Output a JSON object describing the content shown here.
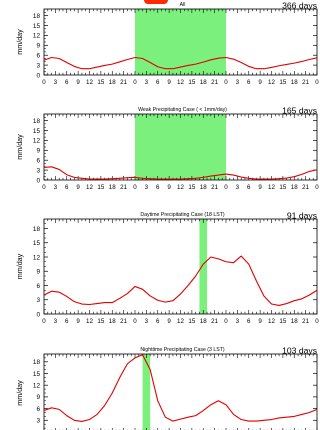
{
  "colors": {
    "series": "#e00000",
    "highlight": "#7cf07c",
    "axis": "#000000",
    "top_mark": "#ff2a00"
  },
  "chart_data": [
    {
      "type": "line",
      "title": "All",
      "days_label": "366 days",
      "ylabel": "mm/day",
      "ylim": [
        0,
        20
      ],
      "yticks": [
        "0",
        "3",
        "6",
        "9",
        "12",
        "15",
        "18"
      ],
      "xticks": [
        "0",
        "3",
        "6",
        "9",
        "12",
        "15",
        "18",
        "21",
        "0",
        "3",
        "6",
        "9",
        "12",
        "15",
        "18",
        "21",
        "0",
        "3",
        "6",
        "9",
        "12",
        "15",
        "18",
        "21",
        "0"
      ],
      "xlim": [
        0,
        72
      ],
      "highlight": {
        "x_start": 24,
        "x_end": 48
      },
      "series": [
        {
          "x": [
            0,
            2,
            4,
            6,
            8,
            10,
            12,
            14,
            16,
            18,
            20,
            22,
            24,
            26,
            28,
            30,
            32,
            34,
            36,
            38,
            40,
            42,
            44,
            46,
            48,
            50,
            52,
            54,
            56,
            58,
            60,
            62,
            64,
            66,
            68,
            70,
            72
          ],
          "y": [
            4.5,
            5.3,
            5.0,
            3.8,
            2.6,
            1.9,
            1.9,
            2.4,
            2.9,
            3.3,
            4.0,
            4.7,
            5.3,
            5.0,
            3.8,
            2.5,
            1.9,
            1.9,
            2.4,
            2.9,
            3.3,
            3.9,
            4.6,
            5.1,
            5.3,
            4.8,
            3.8,
            2.6,
            1.9,
            1.9,
            2.3,
            2.8,
            3.2,
            3.6,
            4.1,
            4.7,
            5.2
          ]
        }
      ]
    },
    {
      "type": "line",
      "title": "Weak Precipitating Case ( < 1mm/day)",
      "days_label": "165 days",
      "ylabel": "mm/day",
      "ylim": [
        0,
        20
      ],
      "yticks": [
        "0",
        "3",
        "6",
        "9",
        "12",
        "15",
        "18"
      ],
      "xticks": [
        "0",
        "3",
        "6",
        "9",
        "12",
        "15",
        "18",
        "21",
        "0",
        "3",
        "6",
        "9",
        "12",
        "15",
        "18",
        "21",
        "0",
        "3",
        "6",
        "9",
        "12",
        "15",
        "18",
        "21",
        "0"
      ],
      "xlim": [
        0,
        72
      ],
      "highlight": {
        "x_start": 24,
        "x_end": 48
      },
      "series": [
        {
          "x": [
            0,
            2,
            4,
            6,
            8,
            10,
            12,
            14,
            16,
            18,
            20,
            22,
            24,
            26,
            28,
            30,
            32,
            34,
            36,
            38,
            40,
            42,
            44,
            46,
            48,
            50,
            52,
            54,
            56,
            58,
            60,
            62,
            64,
            66,
            68,
            70,
            72
          ],
          "y": [
            3.8,
            4.0,
            3.2,
            1.6,
            0.8,
            0.5,
            0.3,
            0.3,
            0.3,
            0.4,
            0.5,
            0.7,
            0.8,
            0.5,
            0.4,
            0.3,
            0.3,
            0.3,
            0.3,
            0.4,
            0.5,
            0.8,
            1.2,
            1.5,
            1.8,
            1.5,
            0.9,
            0.5,
            0.3,
            0.3,
            0.3,
            0.4,
            0.6,
            1.0,
            1.7,
            2.6,
            3.1
          ]
        }
      ]
    },
    {
      "type": "line",
      "title": "Daytime Precipitating Case (18 LST)",
      "days_label": "91 days",
      "ylabel": "mm/day",
      "ylim": [
        0,
        20
      ],
      "yticks": [
        "0",
        "3",
        "6",
        "9",
        "12",
        "15",
        "18"
      ],
      "xticks": [
        "0",
        "3",
        "6",
        "9",
        "12",
        "15",
        "18",
        "21",
        "0",
        "3",
        "6",
        "9",
        "12",
        "15",
        "18",
        "21",
        "0",
        "3",
        "6",
        "9",
        "12",
        "15",
        "18",
        "21",
        "0"
      ],
      "xlim": [
        0,
        72
      ],
      "highlight": {
        "x_start": 41,
        "x_end": 43
      },
      "series": [
        {
          "x": [
            0,
            2,
            4,
            6,
            8,
            10,
            12,
            14,
            16,
            18,
            20,
            22,
            24,
            26,
            28,
            30,
            32,
            34,
            36,
            38,
            40,
            42,
            44,
            46,
            48,
            50,
            52,
            54,
            56,
            58,
            60,
            62,
            64,
            66,
            68,
            70,
            72
          ],
          "y": [
            4.0,
            4.8,
            4.6,
            3.7,
            2.6,
            2.1,
            2.0,
            2.2,
            2.4,
            2.4,
            3.3,
            4.3,
            5.8,
            5.2,
            3.8,
            2.9,
            2.5,
            2.8,
            4.2,
            6.0,
            8.0,
            10.5,
            12.0,
            11.6,
            11.0,
            10.8,
            12.2,
            10.5,
            7.0,
            3.8,
            2.1,
            1.8,
            2.2,
            2.8,
            3.2,
            4.0,
            5.0
          ]
        }
      ]
    },
    {
      "type": "line",
      "title": "Nighttime Precipitating Case (3 LST)",
      "days_label": "103 days",
      "ylabel": "mm/day",
      "ylim": [
        0,
        20
      ],
      "yticks": [
        "0",
        "3",
        "6",
        "9",
        "12",
        "15",
        "18"
      ],
      "xticks": [
        "0",
        "3",
        "6",
        "9",
        "12",
        "15",
        "18",
        "21",
        "0",
        "3",
        "6",
        "9",
        "12",
        "15",
        "18",
        "21",
        "0",
        "3",
        "6",
        "9",
        "12",
        "15",
        "18",
        "21",
        "0"
      ],
      "xlim": [
        0,
        72
      ],
      "highlight": {
        "x_start": 26,
        "x_end": 28
      },
      "series": [
        {
          "x": [
            0,
            2,
            4,
            6,
            8,
            10,
            12,
            14,
            16,
            18,
            20,
            22,
            24,
            26,
            28,
            30,
            32,
            34,
            36,
            38,
            40,
            42,
            44,
            46,
            48,
            50,
            52,
            54,
            56,
            58,
            60,
            62,
            64,
            66,
            68,
            70,
            72
          ],
          "y": [
            5.5,
            6.2,
            5.8,
            4.2,
            3.0,
            2.7,
            3.2,
            4.5,
            6.8,
            10.0,
            14.0,
            17.5,
            19.0,
            19.8,
            16.0,
            8.0,
            3.8,
            2.8,
            3.3,
            3.8,
            4.2,
            5.5,
            7.0,
            8.0,
            7.0,
            4.5,
            3.2,
            2.8,
            2.8,
            3.0,
            3.2,
            3.6,
            3.8,
            4.0,
            4.5,
            5.0,
            5.8
          ]
        }
      ]
    }
  ]
}
